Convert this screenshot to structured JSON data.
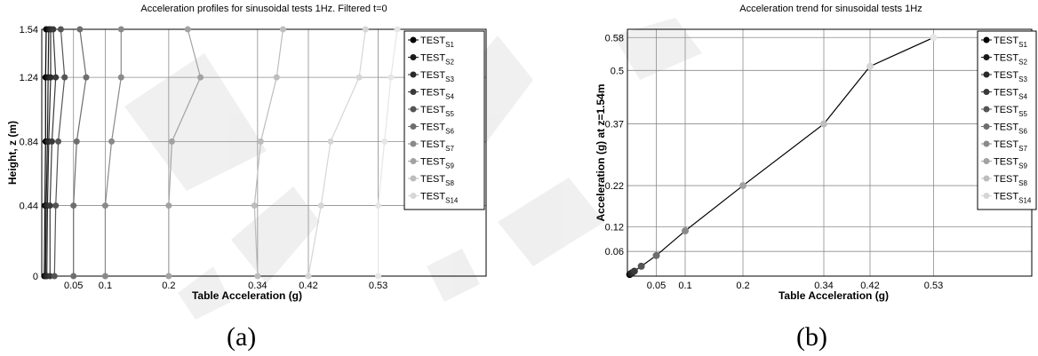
{
  "chart_data": [
    {
      "type": "line",
      "title": "Acceleration profiles for sinusoidal tests 1Hz. Filtered t=0",
      "xlabel": "Table Acceleration (g)",
      "ylabel": "Height, z (m)",
      "xticks": [
        "0.05",
        "0.1",
        "0.2",
        "0.34",
        "0.42",
        "0.53"
      ],
      "yticks": [
        "0",
        "0.44",
        "0.84",
        "1.24",
        "1.54"
      ],
      "xlim": [
        0,
        0.7
      ],
      "ylim": [
        0,
        1.54
      ],
      "grid": true,
      "legend_position": "top-right",
      "y": [
        0,
        0.44,
        0.84,
        1.24,
        1.54
      ],
      "series": [
        {
          "name": "TEST",
          "sub": "S1",
          "color": "#000000",
          "x": [
            0.004,
            0.005,
            0.006,
            0.006,
            0.007
          ]
        },
        {
          "name": "TEST",
          "sub": "S2",
          "color": "#1a1a1a",
          "x": [
            0.006,
            0.007,
            0.009,
            0.01,
            0.011
          ]
        },
        {
          "name": "TEST",
          "sub": "S3",
          "color": "#2a2a2a",
          "x": [
            0.008,
            0.009,
            0.011,
            0.014,
            0.014
          ]
        },
        {
          "name": "TEST",
          "sub": "S4",
          "color": "#3a3a3a",
          "x": [
            0.013,
            0.013,
            0.016,
            0.022,
            0.018
          ]
        },
        {
          "name": "TEST",
          "sub": "S5",
          "color": "#555555",
          "x": [
            0.02,
            0.022,
            0.026,
            0.036,
            0.03
          ]
        },
        {
          "name": "TEST",
          "sub": "S6",
          "color": "#6e6e6e",
          "x": [
            0.05,
            0.05,
            0.055,
            0.07,
            0.06
          ]
        },
        {
          "name": "TEST",
          "sub": "S7",
          "color": "#8a8a8a",
          "x": [
            0.1,
            0.1,
            0.11,
            0.125,
            0.125
          ]
        },
        {
          "name": "TEST",
          "sub": "S9",
          "color": "#a2a2a2",
          "x": [
            0.2,
            0.2,
            0.205,
            0.25,
            0.23
          ]
        },
        {
          "name": "TEST",
          "sub": "S8",
          "color": "#bdbdbd",
          "x": [
            0.34,
            0.335,
            0.345,
            0.37,
            0.38
          ]
        },
        {
          "name": "TEST",
          "sub": "S14",
          "color": "#d6d6d6",
          "x": [
            0.42,
            0.44,
            0.455,
            0.5,
            0.51
          ]
        },
        {
          "name": "TEST",
          "sub": "",
          "color": "#e6e6e6",
          "x": [
            0.53,
            0.53,
            0.54,
            0.55,
            0.56
          ]
        }
      ]
    },
    {
      "type": "line",
      "title": "Acceleration trend for sinusoidal tests 1Hz",
      "xlabel": "Table Acceleration (g)",
      "ylabel": "Acceleration (g) at z=1.54m",
      "xticks": [
        "0.05",
        "0.1",
        "0.2",
        "0.34",
        "0.42",
        "0.53"
      ],
      "yticks": [
        "0.06",
        "0.12",
        "0.22",
        "0.37",
        "0.5",
        "0.58"
      ],
      "xlim": [
        0,
        0.7
      ],
      "ylim": [
        0,
        0.6
      ],
      "grid": true,
      "legend_position": "top-right",
      "points": [
        {
          "x": 0.004,
          "y": 0.004,
          "color": "#000000"
        },
        {
          "x": 0.006,
          "y": 0.006,
          "color": "#1a1a1a"
        },
        {
          "x": 0.008,
          "y": 0.008,
          "color": "#2a2a2a"
        },
        {
          "x": 0.012,
          "y": 0.012,
          "color": "#3a3a3a"
        },
        {
          "x": 0.024,
          "y": 0.024,
          "color": "#555555"
        },
        {
          "x": 0.05,
          "y": 0.05,
          "color": "#6e6e6e"
        },
        {
          "x": 0.1,
          "y": 0.11,
          "color": "#8a8a8a"
        },
        {
          "x": 0.2,
          "y": 0.22,
          "color": "#a2a2a2"
        },
        {
          "x": 0.34,
          "y": 0.37,
          "color": "#bdbdbd"
        },
        {
          "x": 0.42,
          "y": 0.51,
          "color": "#d6d6d6"
        },
        {
          "x": 0.53,
          "y": 0.58,
          "color": "#e6e6e6"
        }
      ],
      "legend": [
        {
          "name": "TEST",
          "sub": "S1",
          "color": "#000000"
        },
        {
          "name": "TEST",
          "sub": "S2",
          "color": "#1a1a1a"
        },
        {
          "name": "TEST",
          "sub": "S3",
          "color": "#2a2a2a"
        },
        {
          "name": "TEST",
          "sub": "S4",
          "color": "#3a3a3a"
        },
        {
          "name": "TEST",
          "sub": "S5",
          "color": "#555555"
        },
        {
          "name": "TEST",
          "sub": "S6",
          "color": "#6e6e6e"
        },
        {
          "name": "TEST",
          "sub": "S7",
          "color": "#8a8a8a"
        },
        {
          "name": "TEST",
          "sub": "S9",
          "color": "#a2a2a2"
        },
        {
          "name": "TEST",
          "sub": "S8",
          "color": "#bdbdbd"
        },
        {
          "name": "TEST",
          "sub": "S14",
          "color": "#d6d6d6"
        }
      ]
    }
  ],
  "captions": [
    "(a)",
    "(b)"
  ],
  "watermark_color": "#e8e8e8"
}
